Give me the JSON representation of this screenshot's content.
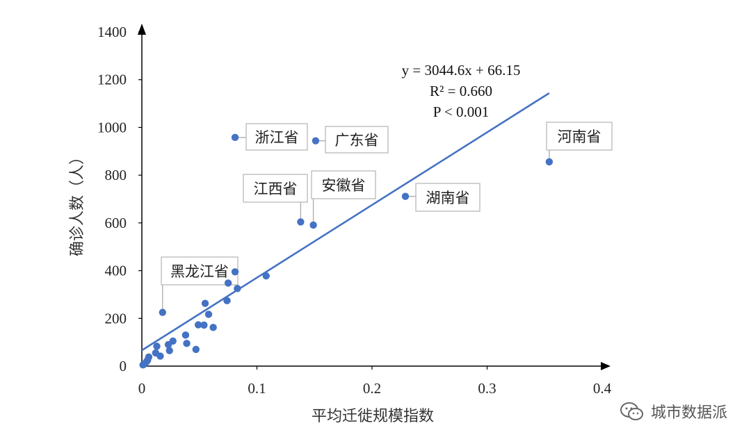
{
  "chart_data": {
    "type": "scatter",
    "xlabel": "平均迁徙规模指数",
    "ylabel": "确诊人数（人）",
    "xlim": [
      0,
      0.4
    ],
    "ylim": [
      0,
      1400
    ],
    "x_ticks": [
      "0",
      "0.1",
      "0.2",
      "0.3",
      "0.4"
    ],
    "y_ticks": [
      "0",
      "200",
      "400",
      "600",
      "800",
      "1000",
      "1200",
      "1400"
    ],
    "grid": false,
    "points": [
      {
        "x": 0.081,
        "y": 958,
        "label": "浙江省"
      },
      {
        "x": 0.151,
        "y": 944,
        "label": "广东省"
      },
      {
        "x": 0.354,
        "y": 856,
        "label": "河南省"
      },
      {
        "x": 0.229,
        "y": 711,
        "label": "湖南省"
      },
      {
        "x": 0.138,
        "y": 604,
        "label": "江西省"
      },
      {
        "x": 0.149,
        "y": 591,
        "label": "安徽省"
      },
      {
        "x": 0.018,
        "y": 225,
        "label": "黑龙江省"
      },
      {
        "x": 0.081,
        "y": 395
      },
      {
        "x": 0.108,
        "y": 378
      },
      {
        "x": 0.075,
        "y": 348
      },
      {
        "x": 0.083,
        "y": 325
      },
      {
        "x": 0.074,
        "y": 274
      },
      {
        "x": 0.055,
        "y": 263
      },
      {
        "x": 0.058,
        "y": 217
      },
      {
        "x": 0.049,
        "y": 173
      },
      {
        "x": 0.054,
        "y": 172
      },
      {
        "x": 0.062,
        "y": 162
      },
      {
        "x": 0.038,
        "y": 130
      },
      {
        "x": 0.027,
        "y": 105
      },
      {
        "x": 0.039,
        "y": 95
      },
      {
        "x": 0.023,
        "y": 90
      },
      {
        "x": 0.013,
        "y": 83
      },
      {
        "x": 0.047,
        "y": 70
      },
      {
        "x": 0.024,
        "y": 65
      },
      {
        "x": 0.012,
        "y": 55
      },
      {
        "x": 0.016,
        "y": 42
      },
      {
        "x": 0.006,
        "y": 38
      },
      {
        "x": 0.005,
        "y": 25
      },
      {
        "x": 0.004,
        "y": 18
      },
      {
        "x": 0.002,
        "y": 8
      },
      {
        "x": 0.001,
        "y": 5
      }
    ],
    "trendline": {
      "slope": 3044.6,
      "intercept": 66.15,
      "x_range": [
        0,
        0.354
      ],
      "equation": "y = 3044.6x + 66.15",
      "r2": "R² = 0.660",
      "p": "P < 0.001"
    },
    "colors": {
      "points": "#4472C4",
      "trendline": "#4472C4",
      "axis": "#000000"
    }
  },
  "watermark": {
    "text": "城市数据派",
    "icon": "wechat-icon"
  }
}
